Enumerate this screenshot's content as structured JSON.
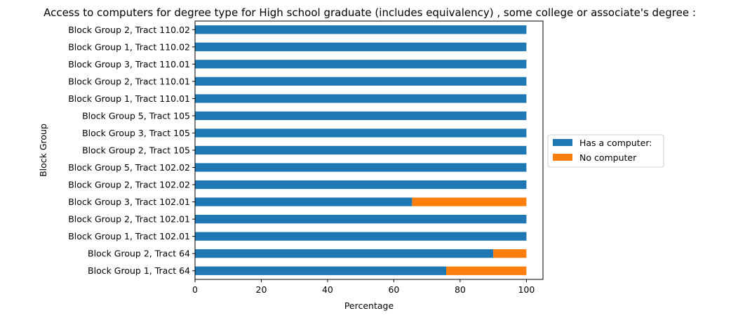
{
  "chart_data": {
    "type": "bar",
    "orientation": "horizontal",
    "stacked": true,
    "title": "Access to computers for degree type for High school graduate (includes equivalency) , some college or associate's degree :",
    "xlabel": "Percentage",
    "ylabel": "Block Group",
    "xlim": [
      0,
      105
    ],
    "xticks": [
      0,
      20,
      40,
      60,
      80,
      100
    ],
    "grid": false,
    "legend_position": "center-right-outside",
    "categories": [
      "Block Group 1, Tract 64",
      "Block Group 2, Tract 64",
      "Block Group 1, Tract 102.01",
      "Block Group 2, Tract 102.01",
      "Block Group 3, Tract 102.01",
      "Block Group 2, Tract 102.02",
      "Block Group 5, Tract 102.02",
      "Block Group 2, Tract 105",
      "Block Group 3, Tract 105",
      "Block Group 5, Tract 105",
      "Block Group 1, Tract 110.01",
      "Block Group 2, Tract 110.01",
      "Block Group 3, Tract 110.01",
      "Block Group 1, Tract 110.02",
      "Block Group 2, Tract 110.02"
    ],
    "series": [
      {
        "name": "Has a computer:",
        "color": "#1f77b4",
        "values": [
          75.8,
          90,
          100,
          100,
          65.5,
          100,
          100,
          100,
          100,
          100,
          100,
          100,
          100,
          100,
          100
        ]
      },
      {
        "name": "No computer",
        "color": "#ff7f0e",
        "values": [
          24.2,
          10,
          0,
          0,
          34.5,
          0,
          0,
          0,
          0,
          0,
          0,
          0,
          0,
          0,
          0
        ]
      }
    ]
  }
}
